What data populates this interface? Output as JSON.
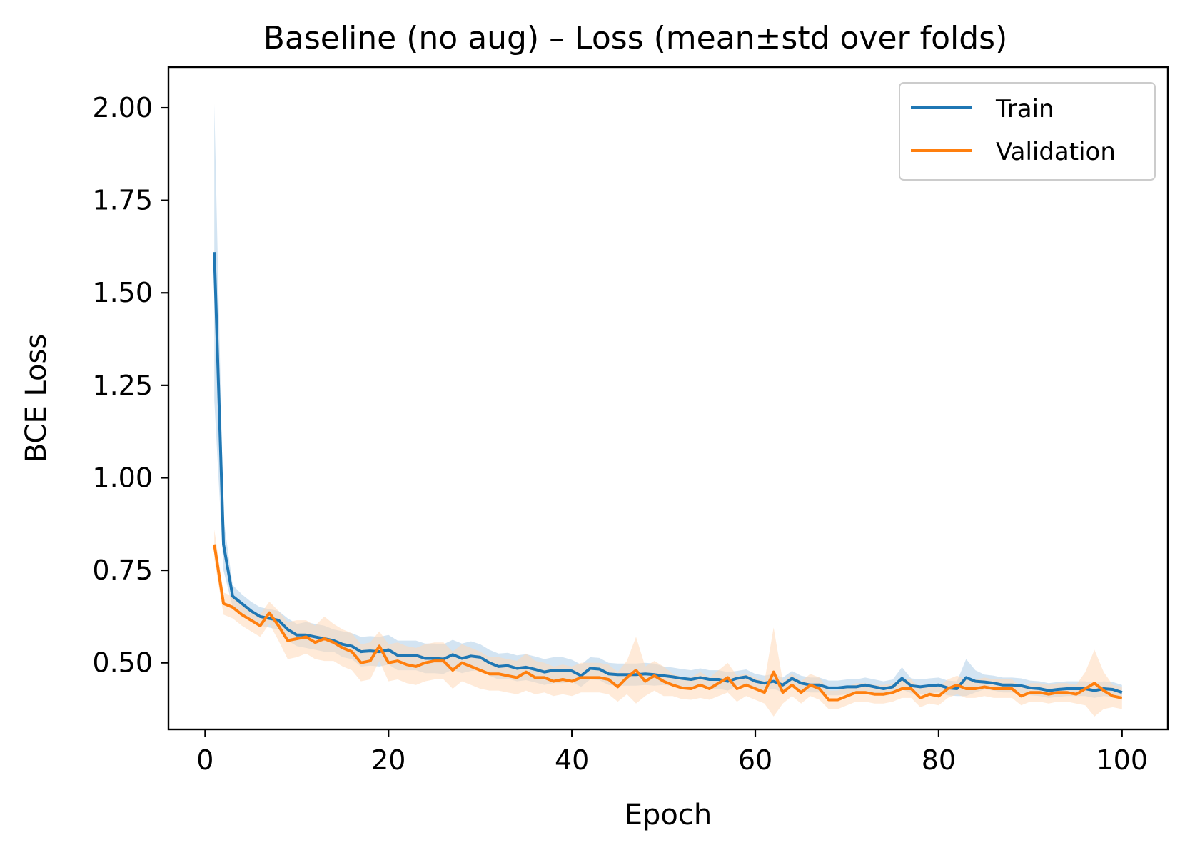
{
  "chart_data": {
    "type": "line",
    "title": "Baseline (no aug) – Loss (mean±std over folds)",
    "xlabel": "Epoch",
    "ylabel": "BCE Loss",
    "xlim": [
      -4,
      105
    ],
    "ylim": [
      0.32,
      2.11
    ],
    "xticks": [
      0,
      20,
      40,
      60,
      80,
      100
    ],
    "xtick_labels": [
      "0",
      "20",
      "40",
      "60",
      "80",
      "100"
    ],
    "yticks": [
      0.5,
      0.75,
      1.0,
      1.25,
      1.5,
      1.75,
      2.0
    ],
    "ytick_labels": [
      "0.50",
      "0.75",
      "1.00",
      "1.25",
      "1.50",
      "1.75",
      "2.00"
    ],
    "grid": false,
    "legend_position": "top-right",
    "x": [
      1,
      2,
      3,
      4,
      5,
      6,
      7,
      8,
      9,
      10,
      11,
      12,
      13,
      14,
      15,
      16,
      17,
      18,
      19,
      20,
      21,
      22,
      23,
      24,
      25,
      26,
      27,
      28,
      29,
      30,
      31,
      32,
      33,
      34,
      35,
      36,
      37,
      38,
      39,
      40,
      41,
      42,
      43,
      44,
      45,
      46,
      47,
      48,
      49,
      50,
      51,
      52,
      53,
      54,
      55,
      56,
      57,
      58,
      59,
      60,
      61,
      62,
      63,
      64,
      65,
      66,
      67,
      68,
      69,
      70,
      71,
      72,
      73,
      74,
      75,
      76,
      77,
      78,
      79,
      80,
      81,
      82,
      83,
      84,
      85,
      86,
      87,
      88,
      89,
      90,
      91,
      92,
      93,
      94,
      95,
      96,
      97,
      98,
      99,
      100
    ],
    "series": [
      {
        "name": "Train",
        "color": "#1f77b4",
        "band_color": "#aecde8",
        "values": [
          1.61,
          0.82,
          0.68,
          0.66,
          0.64,
          0.625,
          0.62,
          0.615,
          0.59,
          0.575,
          0.575,
          0.57,
          0.565,
          0.56,
          0.55,
          0.545,
          0.53,
          0.532,
          0.53,
          0.535,
          0.52,
          0.52,
          0.52,
          0.512,
          0.512,
          0.51,
          0.522,
          0.512,
          0.518,
          0.515,
          0.5,
          0.49,
          0.492,
          0.485,
          0.488,
          0.482,
          0.475,
          0.48,
          0.48,
          0.478,
          0.465,
          0.485,
          0.483,
          0.47,
          0.468,
          0.468,
          0.468,
          0.47,
          0.468,
          0.465,
          0.462,
          0.458,
          0.455,
          0.46,
          0.455,
          0.455,
          0.45,
          0.458,
          0.462,
          0.45,
          0.445,
          0.45,
          0.44,
          0.458,
          0.445,
          0.44,
          0.44,
          0.432,
          0.432,
          0.435,
          0.435,
          0.44,
          0.435,
          0.43,
          0.435,
          0.458,
          0.438,
          0.435,
          0.438,
          0.44,
          0.432,
          0.43,
          0.46,
          0.45,
          0.448,
          0.445,
          0.44,
          0.44,
          0.438,
          0.432,
          0.43,
          0.425,
          0.428,
          0.43,
          0.43,
          0.43,
          0.425,
          0.43,
          0.428,
          0.42
        ],
        "std": [
          0.4,
          0.07,
          0.03,
          0.025,
          0.025,
          0.025,
          0.025,
          0.025,
          0.03,
          0.03,
          0.035,
          0.035,
          0.035,
          0.03,
          0.035,
          0.035,
          0.04,
          0.04,
          0.04,
          0.04,
          0.04,
          0.04,
          0.04,
          0.04,
          0.04,
          0.04,
          0.04,
          0.04,
          0.04,
          0.035,
          0.035,
          0.035,
          0.035,
          0.035,
          0.035,
          0.035,
          0.035,
          0.035,
          0.035,
          0.03,
          0.03,
          0.03,
          0.03,
          0.03,
          0.03,
          0.03,
          0.03,
          0.03,
          0.03,
          0.025,
          0.025,
          0.025,
          0.025,
          0.025,
          0.025,
          0.025,
          0.025,
          0.02,
          0.02,
          0.02,
          0.02,
          0.02,
          0.02,
          0.02,
          0.02,
          0.02,
          0.02,
          0.02,
          0.02,
          0.02,
          0.02,
          0.02,
          0.02,
          0.02,
          0.02,
          0.03,
          0.02,
          0.02,
          0.02,
          0.02,
          0.02,
          0.02,
          0.05,
          0.03,
          0.02,
          0.02,
          0.02,
          0.02,
          0.02,
          0.02,
          0.02,
          0.02,
          0.02,
          0.02,
          0.02,
          0.02,
          0.02,
          0.02,
          0.02,
          0.02
        ]
      },
      {
        "name": "Validation",
        "color": "#ff7f0e",
        "band_color": "#ffd9b8",
        "values": [
          0.82,
          0.66,
          0.65,
          0.63,
          0.615,
          0.6,
          0.635,
          0.6,
          0.56,
          0.565,
          0.57,
          0.555,
          0.565,
          0.555,
          0.54,
          0.53,
          0.5,
          0.505,
          0.545,
          0.5,
          0.505,
          0.495,
          0.49,
          0.5,
          0.505,
          0.505,
          0.48,
          0.5,
          0.49,
          0.48,
          0.47,
          0.47,
          0.465,
          0.46,
          0.475,
          0.46,
          0.46,
          0.45,
          0.455,
          0.45,
          0.46,
          0.46,
          0.46,
          0.455,
          0.435,
          0.46,
          0.48,
          0.45,
          0.465,
          0.45,
          0.44,
          0.432,
          0.43,
          0.44,
          0.43,
          0.445,
          0.46,
          0.43,
          0.44,
          0.43,
          0.42,
          0.475,
          0.42,
          0.44,
          0.42,
          0.44,
          0.43,
          0.4,
          0.4,
          0.41,
          0.42,
          0.42,
          0.415,
          0.415,
          0.42,
          0.43,
          0.43,
          0.405,
          0.415,
          0.41,
          0.43,
          0.44,
          0.43,
          0.43,
          0.435,
          0.43,
          0.43,
          0.43,
          0.41,
          0.42,
          0.42,
          0.415,
          0.42,
          0.42,
          0.415,
          0.43,
          0.445,
          0.425,
          0.41,
          0.405
        ],
        "std": [
          0.04,
          0.03,
          0.03,
          0.03,
          0.03,
          0.03,
          0.03,
          0.04,
          0.05,
          0.05,
          0.045,
          0.045,
          0.06,
          0.05,
          0.05,
          0.05,
          0.05,
          0.05,
          0.04,
          0.05,
          0.05,
          0.05,
          0.05,
          0.05,
          0.05,
          0.05,
          0.05,
          0.05,
          0.05,
          0.05,
          0.045,
          0.045,
          0.045,
          0.045,
          0.05,
          0.045,
          0.04,
          0.04,
          0.04,
          0.04,
          0.04,
          0.04,
          0.04,
          0.04,
          0.04,
          0.045,
          0.09,
          0.04,
          0.04,
          0.04,
          0.03,
          0.03,
          0.03,
          0.035,
          0.03,
          0.035,
          0.04,
          0.035,
          0.03,
          0.03,
          0.03,
          0.12,
          0.03,
          0.03,
          0.03,
          0.03,
          0.03,
          0.025,
          0.025,
          0.025,
          0.025,
          0.025,
          0.025,
          0.025,
          0.025,
          0.025,
          0.025,
          0.025,
          0.025,
          0.025,
          0.025,
          0.025,
          0.025,
          0.025,
          0.025,
          0.025,
          0.025,
          0.025,
          0.025,
          0.025,
          0.025,
          0.025,
          0.025,
          0.025,
          0.025,
          0.045,
          0.09,
          0.05,
          0.03,
          0.03
        ]
      }
    ]
  }
}
